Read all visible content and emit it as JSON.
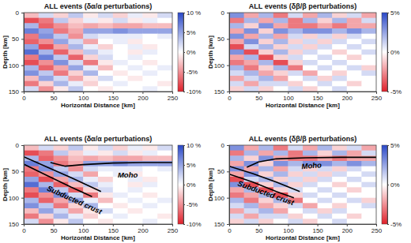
{
  "chart_data": [
    {
      "type": "heatmap",
      "title": "ALL events (δα/α perturbations)",
      "x_label": "Horizontal Distance [km]",
      "y_label": "Depth [km]",
      "xlim": [
        0,
        250
      ],
      "ylim": [
        0,
        150
      ],
      "xticks": [
        0,
        50,
        100,
        150,
        200,
        250
      ],
      "yticks": [
        0,
        50,
        100,
        150
      ],
      "x_bins": [
        0,
        25,
        50,
        75,
        100,
        125,
        150,
        175,
        200,
        225,
        250
      ],
      "y_bins": [
        0,
        10,
        20,
        30,
        40,
        50,
        60,
        70,
        80,
        90,
        100,
        110,
        120,
        130,
        140,
        150
      ],
      "cells": [
        [
          -3,
          2,
          -2,
          3,
          -1,
          2,
          -2,
          1,
          -1,
          2
        ],
        [
          -8,
          -6,
          3,
          -2,
          1,
          -1,
          2,
          -1,
          1,
          0
        ],
        [
          4,
          -7,
          -5,
          -3,
          -4,
          -3,
          -4,
          -4,
          -3,
          -3
        ],
        [
          7,
          5,
          -6,
          -4,
          5,
          5,
          6,
          5,
          5,
          5
        ],
        [
          -6,
          6,
          3,
          -5,
          2,
          1,
          1,
          1,
          0,
          1
        ],
        [
          -7,
          -5,
          5,
          2,
          -4,
          0,
          1,
          -1,
          0,
          0
        ],
        [
          5,
          -8,
          -4,
          4,
          1,
          -2,
          0,
          1,
          -1,
          0
        ],
        [
          8,
          4,
          -7,
          -3,
          3,
          1,
          0,
          -1,
          1,
          0
        ],
        [
          -6,
          7,
          3,
          -7,
          -2,
          2,
          0,
          1,
          0,
          0
        ],
        [
          -8,
          -5,
          6,
          2,
          -6,
          -1,
          1,
          0,
          -1,
          0
        ],
        [
          4,
          -7,
          -4,
          5,
          1,
          -3,
          0,
          1,
          0,
          1
        ],
        [
          6,
          3,
          -6,
          -2,
          4,
          0,
          -1,
          0,
          1,
          0
        ],
        [
          -3,
          5,
          2,
          -4,
          -1,
          2,
          0,
          -1,
          0,
          0
        ],
        [
          -6,
          -2,
          4,
          1,
          -2,
          0,
          1,
          0,
          0,
          -1
        ],
        [
          2,
          -5,
          -1,
          3,
          0,
          -1,
          0,
          0,
          1,
          0
        ]
      ],
      "colorbar": {
        "range": [
          -10,
          10
        ],
        "ticks": [
          {
            "value": 10,
            "label": "10 %"
          },
          {
            "value": 5,
            "label": "5%"
          },
          {
            "value": 0,
            "label": "0%"
          },
          {
            "value": -5,
            "label": "-5%"
          },
          {
            "value": -10,
            "label": "-10%"
          }
        ]
      }
    },
    {
      "type": "heatmap",
      "title": "ALL events (δβ/β perturbations)",
      "x_label": "Horizontal Distance [km]",
      "y_label": "Depth [km]",
      "xlim": [
        0,
        250
      ],
      "ylim": [
        0,
        150
      ],
      "xticks": [
        0,
        50,
        100,
        150,
        200,
        250
      ],
      "yticks": [
        0,
        50,
        100,
        150
      ],
      "x_bins": [
        0,
        25,
        50,
        75,
        100,
        125,
        150,
        175,
        200,
        225,
        250
      ],
      "y_bins": [
        0,
        10,
        20,
        30,
        40,
        50,
        60,
        70,
        80,
        90,
        100,
        110,
        120,
        130,
        140,
        150
      ],
      "cells": [
        [
          3,
          -2,
          2,
          -3,
          1,
          -2,
          2,
          -1,
          1,
          -2
        ],
        [
          -3,
          2,
          -2,
          2,
          -3,
          2,
          -1,
          2,
          -2,
          1
        ],
        [
          2,
          -1,
          3,
          -2,
          -3,
          -3,
          -2,
          -3,
          -2,
          -2
        ],
        [
          -2,
          3,
          -1,
          3,
          2,
          3,
          3,
          2,
          3,
          2
        ],
        [
          3,
          -2,
          2,
          -2,
          1,
          -1,
          1,
          -1,
          1,
          0
        ],
        [
          -2,
          3,
          -1,
          2,
          -1,
          1,
          -1,
          1,
          0,
          1
        ],
        [
          -4,
          1,
          2,
          -1,
          1,
          -1,
          1,
          0,
          1,
          0
        ],
        [
          3,
          -4,
          -1,
          2,
          -1,
          1,
          0,
          -1,
          0,
          1
        ],
        [
          -2,
          2,
          -4,
          -1,
          1,
          0,
          1,
          0,
          -1,
          0
        ],
        [
          -3,
          -2,
          2,
          -4,
          -1,
          1,
          0,
          1,
          0,
          0
        ],
        [
          2,
          -3,
          -1,
          2,
          -3,
          0,
          1,
          0,
          1,
          -1
        ],
        [
          1,
          2,
          -2,
          -1,
          1,
          -2,
          0,
          -1,
          0,
          1
        ],
        [
          -2,
          1,
          2,
          -2,
          0,
          1,
          -1,
          1,
          0,
          0
        ],
        [
          1,
          -2,
          1,
          1,
          -1,
          0,
          1,
          0,
          -1,
          0
        ],
        [
          -1,
          1,
          -1,
          0,
          1,
          -1,
          0,
          1,
          0,
          0
        ]
      ],
      "colorbar": {
        "range": [
          -5,
          5
        ],
        "ticks": [
          {
            "value": 5,
            "label": "5%"
          },
          {
            "value": 0,
            "label": "0%"
          },
          {
            "value": -5,
            "label": "-5%"
          }
        ]
      }
    },
    {
      "type": "heatmap",
      "title": "ALL events (δα/α perturbations)",
      "x_label": "Horizontal Distance [km]",
      "y_label": "Depth [km]",
      "xlim": [
        0,
        250
      ],
      "ylim": [
        0,
        150
      ],
      "xticks": [
        0,
        50,
        100,
        150,
        200,
        250
      ],
      "yticks": [
        0,
        50,
        100,
        150
      ],
      "x_bins": [
        0,
        25,
        50,
        75,
        100,
        125,
        150,
        175,
        200,
        225,
        250
      ],
      "y_bins": [
        0,
        10,
        20,
        30,
        40,
        50,
        60,
        70,
        80,
        90,
        100,
        110,
        120,
        130,
        140,
        150
      ],
      "cells": [
        [
          -3,
          2,
          -2,
          3,
          -1,
          2,
          -2,
          1,
          -1,
          2
        ],
        [
          -8,
          -6,
          3,
          -2,
          1,
          -1,
          2,
          -1,
          1,
          0
        ],
        [
          4,
          -7,
          -5,
          -3,
          -4,
          -3,
          -4,
          -4,
          -3,
          -3
        ],
        [
          7,
          5,
          -6,
          -4,
          5,
          5,
          6,
          5,
          5,
          5
        ],
        [
          -6,
          6,
          3,
          -5,
          2,
          1,
          1,
          1,
          0,
          1
        ],
        [
          -7,
          -5,
          5,
          2,
          -4,
          0,
          1,
          -1,
          0,
          0
        ],
        [
          5,
          -8,
          -4,
          4,
          1,
          -2,
          0,
          1,
          -1,
          0
        ],
        [
          8,
          4,
          -7,
          -3,
          3,
          1,
          0,
          -1,
          1,
          0
        ],
        [
          -6,
          7,
          3,
          -7,
          -2,
          2,
          0,
          1,
          0,
          0
        ],
        [
          -8,
          -5,
          6,
          2,
          -6,
          -1,
          1,
          0,
          -1,
          0
        ],
        [
          4,
          -7,
          -4,
          5,
          1,
          -3,
          0,
          1,
          0,
          1
        ],
        [
          6,
          3,
          -6,
          -2,
          4,
          0,
          -1,
          0,
          1,
          0
        ],
        [
          -3,
          5,
          2,
          -4,
          -1,
          2,
          0,
          -1,
          0,
          0
        ],
        [
          -6,
          -2,
          4,
          1,
          -2,
          0,
          1,
          0,
          0,
          -1
        ],
        [
          2,
          -5,
          -1,
          3,
          0,
          -1,
          0,
          0,
          1,
          0
        ]
      ],
      "colorbar": {
        "range": [
          -10,
          10
        ],
        "ticks": [
          {
            "value": 10,
            "label": "10 %"
          },
          {
            "value": 5,
            "label": "5%"
          },
          {
            "value": 0,
            "label": "0%"
          },
          {
            "value": -5,
            "label": "-5%"
          },
          {
            "value": -10,
            "label": "-10%"
          }
        ]
      },
      "features": [
        {
          "label": "Moho",
          "x": 175,
          "y": 58,
          "lines": [
            {
              "x": [
                45,
                70,
                100,
                150,
                200,
                250
              ],
              "y": [
                33,
                40,
                37,
                34,
                33,
                33
              ]
            }
          ]
        },
        {
          "label": "Subducted crust",
          "x": 85,
          "y": 105,
          "lines": [
            {
              "x": [
                0,
                40,
                80,
                130
              ],
              "y": [
                22,
                42,
                62,
                88
              ]
            },
            {
              "x": [
                0,
                40,
                80,
                115
              ],
              "y": [
                36,
                58,
                80,
                98
              ]
            }
          ]
        }
      ]
    },
    {
      "type": "heatmap",
      "title": "ALL events (δβ/β perturbations)",
      "x_label": "Horizontal Distance [km]",
      "y_label": "Depth [km]",
      "xlim": [
        0,
        250
      ],
      "ylim": [
        0,
        150
      ],
      "xticks": [
        0,
        50,
        100,
        150,
        200,
        250
      ],
      "yticks": [
        0,
        50,
        100,
        150
      ],
      "x_bins": [
        0,
        25,
        50,
        75,
        100,
        125,
        150,
        175,
        200,
        225,
        250
      ],
      "y_bins": [
        0,
        10,
        20,
        30,
        40,
        50,
        60,
        70,
        80,
        90,
        100,
        110,
        120,
        130,
        140,
        150
      ],
      "cells": [
        [
          3,
          -2,
          2,
          -3,
          1,
          -2,
          2,
          -1,
          1,
          -2
        ],
        [
          -3,
          2,
          -2,
          2,
          -3,
          2,
          -1,
          2,
          -2,
          1
        ],
        [
          2,
          -1,
          3,
          -2,
          -3,
          -3,
          -2,
          -3,
          -2,
          -2
        ],
        [
          -2,
          3,
          -1,
          3,
          2,
          3,
          3,
          2,
          3,
          2
        ],
        [
          3,
          -2,
          2,
          -2,
          1,
          -1,
          1,
          -1,
          1,
          0
        ],
        [
          -2,
          3,
          -1,
          2,
          -1,
          1,
          -1,
          1,
          0,
          1
        ],
        [
          -4,
          1,
          2,
          -1,
          1,
          -1,
          1,
          0,
          1,
          0
        ],
        [
          3,
          -4,
          -1,
          2,
          -1,
          1,
          0,
          -1,
          0,
          1
        ],
        [
          -2,
          2,
          -4,
          -1,
          1,
          0,
          1,
          0,
          -1,
          0
        ],
        [
          -3,
          -2,
          2,
          -4,
          -1,
          1,
          0,
          1,
          0,
          0
        ],
        [
          2,
          -3,
          -1,
          2,
          -3,
          0,
          1,
          0,
          1,
          -1
        ],
        [
          1,
          2,
          -2,
          -1,
          1,
          -2,
          0,
          -1,
          0,
          1
        ],
        [
          -2,
          1,
          2,
          -2,
          0,
          1,
          -1,
          1,
          0,
          0
        ],
        [
          1,
          -2,
          1,
          1,
          -1,
          0,
          1,
          0,
          -1,
          0
        ],
        [
          -1,
          1,
          -1,
          0,
          1,
          -1,
          0,
          1,
          0,
          0
        ]
      ],
      "colorbar": {
        "range": [
          -5,
          5
        ],
        "ticks": [
          {
            "value": 5,
            "label": "5%"
          },
          {
            "value": 0,
            "label": "0%"
          },
          {
            "value": -5,
            "label": "-5%"
          }
        ]
      },
      "features": [
        {
          "label": "Moho",
          "x": 140,
          "y": 40,
          "lines": [
            {
              "x": [
                30,
                50,
                80,
                130,
                190,
                250
              ],
              "y": [
                42,
                32,
                26,
                24,
                23,
                23
              ]
            }
          ]
        },
        {
          "label": "Subducted crust",
          "x": 62,
          "y": 92,
          "lines": [
            {
              "x": [
                0,
                40,
                80,
                120
              ],
              "y": [
                40,
                54,
                70,
                88
              ]
            },
            {
              "x": [
                0,
                40,
                80,
                110
              ],
              "y": [
                55,
                70,
                88,
                100
              ]
            }
          ]
        }
      ]
    }
  ]
}
